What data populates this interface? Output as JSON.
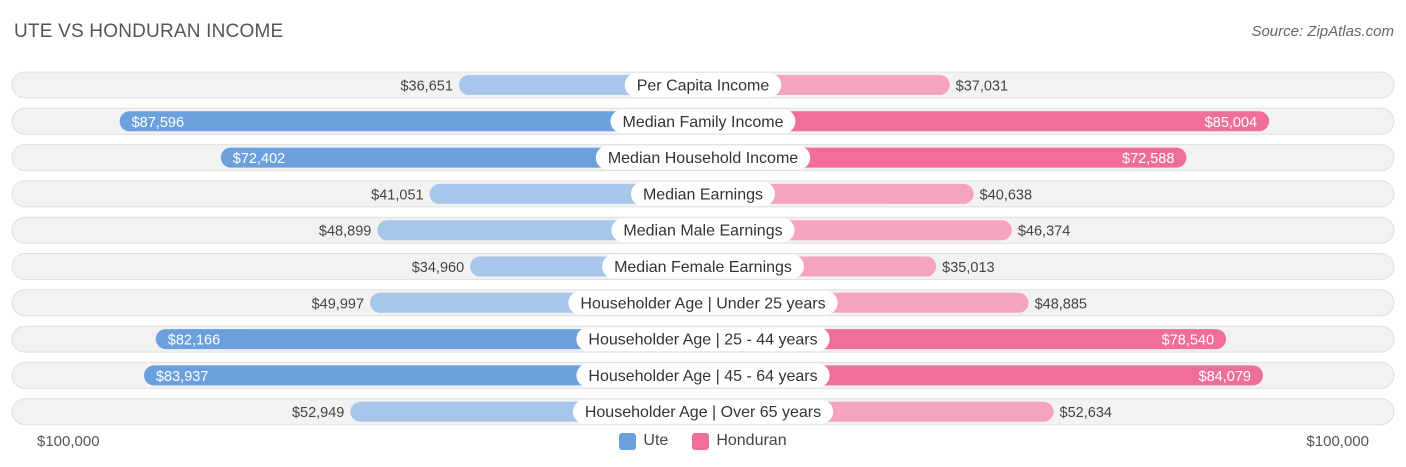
{
  "title": "UTE VS HONDURAN INCOME",
  "source": "Source: ZipAtlas.com",
  "axis": {
    "left_label": "$100,000",
    "right_label": "$100,000"
  },
  "legend": [
    {
      "name": "Ute",
      "color": "#6ca0dc"
    },
    {
      "name": "Honduran",
      "color": "#f06e9a"
    }
  ],
  "chart_data": {
    "type": "bar",
    "orientation": "horizontal-mirrored",
    "max": 100000,
    "categories": [
      "Per Capita Income",
      "Median Family Income",
      "Median Household Income",
      "Median Earnings",
      "Median Male Earnings",
      "Median Female Earnings",
      "Householder Age | Under 25 years",
      "Householder Age | 25 - 44 years",
      "Householder Age | 45 - 64 years",
      "Householder Age | Over 65 years"
    ],
    "series": [
      {
        "name": "Ute",
        "values": [
          36651,
          87596,
          72402,
          41051,
          48899,
          34960,
          49997,
          82166,
          83937,
          52949
        ],
        "labels": [
          "$36,651",
          "$87,596",
          "$72,402",
          "$41,051",
          "$48,899",
          "$34,960",
          "$49,997",
          "$82,166",
          "$83,937",
          "$52,949"
        ],
        "color_strong": "#6ca0dc",
        "color_light": "#a7c6ea"
      },
      {
        "name": "Honduran",
        "values": [
          37031,
          85004,
          72588,
          40638,
          46374,
          35013,
          48885,
          78540,
          84079,
          52634
        ],
        "labels": [
          "$37,031",
          "$85,004",
          "$72,588",
          "$40,638",
          "$46,374",
          "$35,013",
          "$48,885",
          "$78,540",
          "$84,079",
          "$52,634"
        ],
        "color_strong": "#f06e9a",
        "color_light": "#f5a3bf"
      }
    ]
  }
}
